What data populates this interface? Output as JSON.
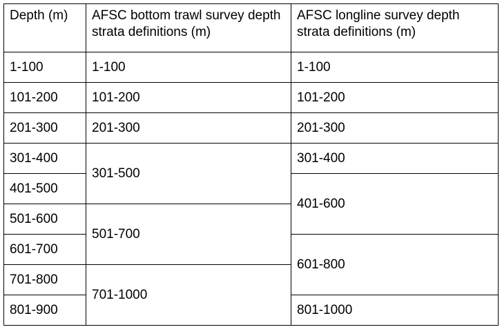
{
  "headers": [
    "Depth (m)",
    "AFSC bottom trawl survey depth strata definitions (m)",
    "AFSC longline survey depth strata definitions (m)"
  ],
  "depth": [
    "1-100",
    "101-200",
    "201-300",
    "301-400",
    "401-500",
    "501-600",
    "601-700",
    "701-800",
    "801-900"
  ],
  "trawl": [
    "1-100",
    "101-200",
    "201-300",
    "301-500",
    "501-700",
    "701-1000"
  ],
  "longline": [
    "1-100",
    "101-200",
    "201-300",
    "301-400",
    "401-600",
    "601-800",
    "801-1000"
  ]
}
